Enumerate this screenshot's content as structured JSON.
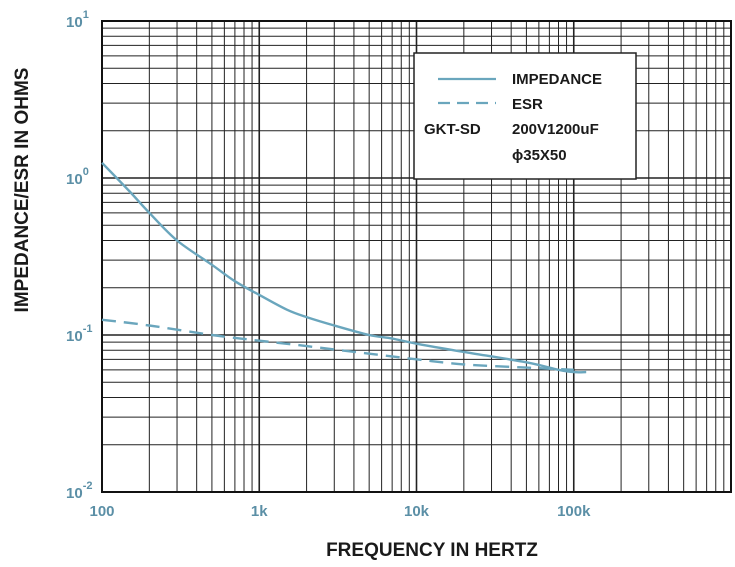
{
  "chart_data": {
    "type": "line",
    "xlabel": "FREQUENCY IN HERTZ",
    "ylabel": "IMPEDANCE/ESR IN OHMS",
    "x_scale": "log",
    "y_scale": "log",
    "xlim": [
      100,
      1000000
    ],
    "ylim": [
      0.01,
      10
    ],
    "grid": true,
    "x_ticks": [
      {
        "value": 100,
        "label": "100"
      },
      {
        "value": 1000,
        "label": "1k"
      },
      {
        "value": 10000,
        "label": "10k"
      },
      {
        "value": 100000,
        "label": "100k"
      }
    ],
    "y_ticks": [
      {
        "value": 10,
        "base": "10",
        "exp": "1"
      },
      {
        "value": 1,
        "base": "10",
        "exp": "0"
      },
      {
        "value": 0.1,
        "base": "10",
        "exp": "-1"
      },
      {
        "value": 0.01,
        "base": "10",
        "exp": "-2"
      }
    ],
    "legend": {
      "placement": "top-right",
      "part_label": "GKT-SD",
      "spec_line1": "200V1200uF",
      "spec_line2": "ϕ35X50"
    },
    "series": [
      {
        "name": "IMPEDANCE",
        "style": "solid",
        "color": "#6aa6bd",
        "x": [
          100,
          150,
          200,
          300,
          500,
          700,
          1000,
          1500,
          2000,
          3000,
          5000,
          7000,
          10000,
          20000,
          50000,
          80000,
          100000,
          120000
        ],
        "values": [
          1.25,
          0.82,
          0.6,
          0.4,
          0.28,
          0.22,
          0.18,
          0.145,
          0.13,
          0.115,
          0.1,
          0.095,
          0.088,
          0.078,
          0.067,
          0.06,
          0.058,
          0.058
        ]
      },
      {
        "name": "ESR",
        "style": "dashed",
        "color": "#6aa6bd",
        "x": [
          100,
          200,
          500,
          1000,
          2000,
          5000,
          10000,
          20000,
          50000,
          100000
        ],
        "values": [
          0.125,
          0.115,
          0.1,
          0.092,
          0.085,
          0.076,
          0.07,
          0.065,
          0.062,
          0.06
        ]
      }
    ]
  }
}
